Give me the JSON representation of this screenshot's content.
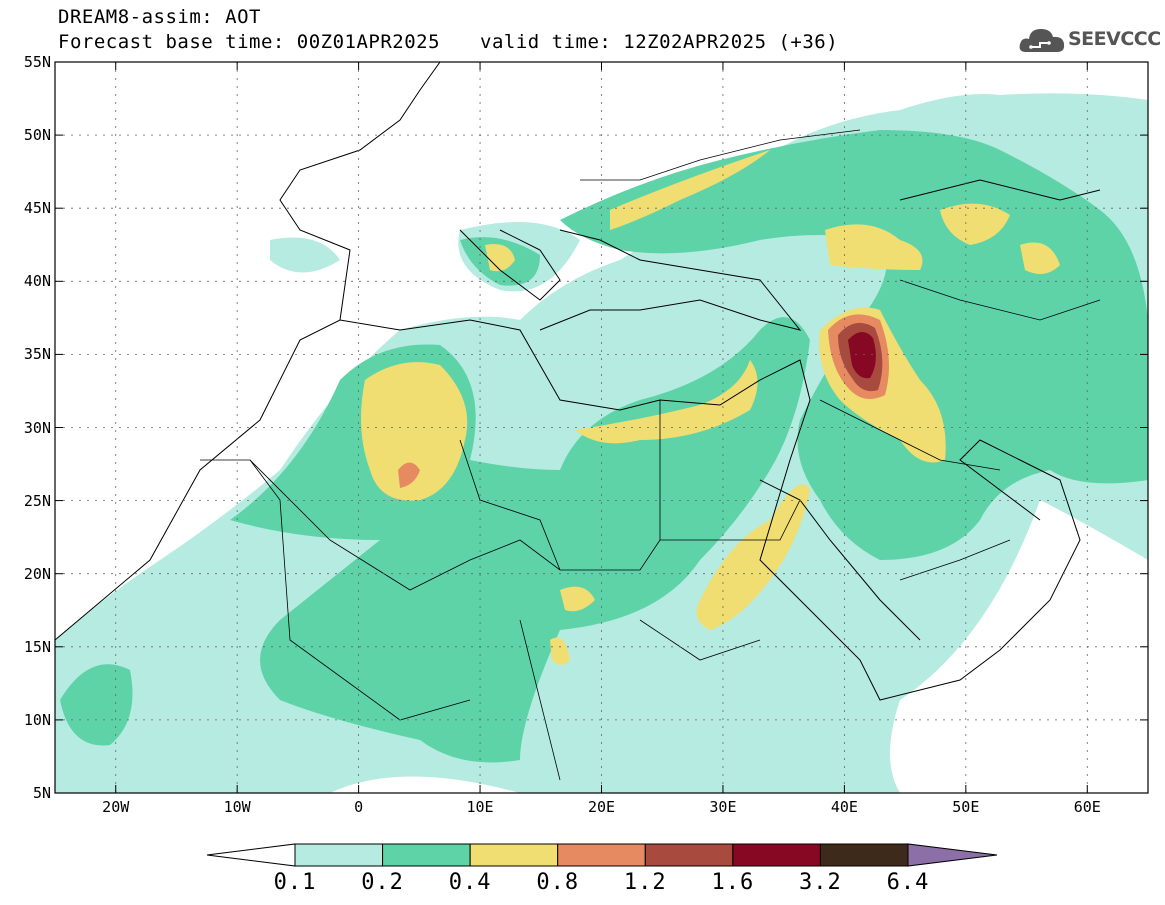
{
  "header": {
    "title": "DREAM8-assim: AOT",
    "base_time": "Forecast base time: 00Z01APR2025",
    "valid_time": "valid time: 12Z02APR2025 (+36)",
    "logo": {
      "text": "SEEVCCC",
      "icon": "cloud-icon"
    }
  },
  "map": {
    "lon_range": [
      -25,
      65
    ],
    "lat_range": [
      5,
      55
    ],
    "lon_labels": [
      "20W",
      "10W",
      "0",
      "10E",
      "20E",
      "30E",
      "40E",
      "50E",
      "60E"
    ],
    "lat_labels": [
      "55N",
      "50N",
      "45N",
      "40N",
      "35N",
      "30N",
      "25N",
      "20N",
      "15N",
      "10N",
      "5N"
    ],
    "gridlines": "dotted",
    "colors": {
      "level1": "#b5ebe0",
      "level2": "#5ed3a8",
      "level3": "#f0de72",
      "level4": "#e68a62",
      "level5": "#a84a3e",
      "level6": "#860823",
      "coast": "#000000",
      "land": "#ffffff"
    }
  },
  "colorbar": {
    "labels": [
      "0.1",
      "0.2",
      "0.4",
      "0.8",
      "1.2",
      "1.6",
      "3.2",
      "6.4"
    ],
    "colors": [
      "#ffffff",
      "#b5ebe0",
      "#5ed3a8",
      "#f0de72",
      "#e68a62",
      "#a84a3e",
      "#860823",
      "#3e2a1a",
      "#8d6fa8"
    ]
  }
}
